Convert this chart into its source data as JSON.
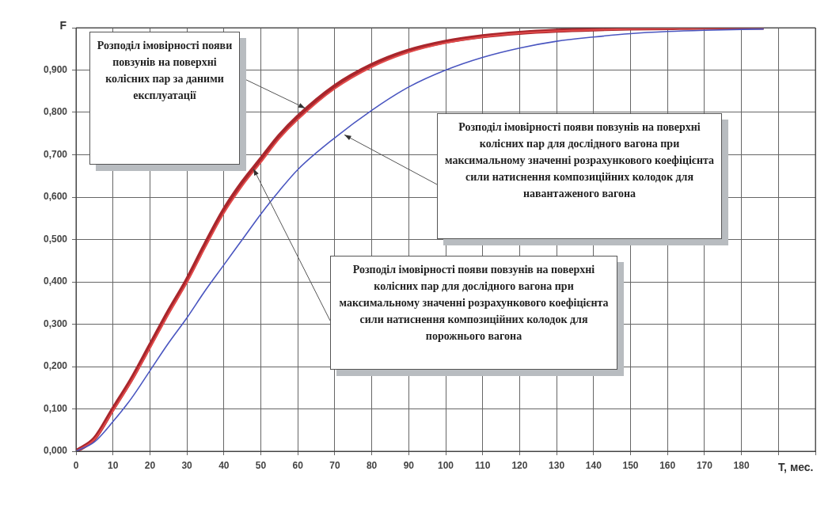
{
  "chart_data": {
    "type": "line",
    "xlabel": "T, мес.",
    "ylabel": "F",
    "xlim": [
      0,
      200
    ],
    "xticks": [
      0,
      10,
      20,
      30,
      40,
      50,
      60,
      70,
      80,
      90,
      100,
      110,
      120,
      130,
      140,
      150,
      160,
      170,
      180,
      {
        "value": 190,
        "label": null
      },
      {
        "value": 200,
        "label": null
      }
    ],
    "ylim": [
      0,
      1.0
    ],
    "yticks": [
      {
        "value": 0,
        "label": "0,000"
      },
      {
        "value": 0.1,
        "label": "0,100"
      },
      {
        "value": 0.2,
        "label": "0,200"
      },
      {
        "value": 0.3,
        "label": "0,300"
      },
      {
        "value": 0.4,
        "label": "0,400"
      },
      {
        "value": 0.5,
        "label": "0,500"
      },
      {
        "value": 0.6,
        "label": "0,600"
      },
      {
        "value": 0.7,
        "label": "0,700"
      },
      {
        "value": 0.8,
        "label": "0,800"
      },
      {
        "value": 0.9,
        "label": "0,900"
      },
      {
        "value": 1.0,
        "label": null
      }
    ],
    "grid": true,
    "marker": "none",
    "line_style": "solid",
    "x": [
      0,
      5,
      10,
      15,
      20,
      25,
      30,
      35,
      40,
      45,
      50,
      55,
      60,
      70,
      80,
      90,
      100,
      110,
      120,
      130,
      140,
      150,
      160,
      170,
      186
    ],
    "series": [
      {
        "color": "#a8262c",
        "values": [
          0,
          0.03,
          0.1,
          0.17,
          0.25,
          0.33,
          0.405,
          0.49,
          0.57,
          0.635,
          0.69,
          0.745,
          0.79,
          0.862,
          0.912,
          0.946,
          0.967,
          0.98,
          0.988,
          0.993,
          0.996,
          0.998,
          0.999,
          1.0,
          1.0
        ]
      },
      {
        "color": "#e04a4a",
        "values": [
          0,
          0.028,
          0.095,
          0.165,
          0.243,
          0.323,
          0.398,
          0.482,
          0.562,
          0.627,
          0.682,
          0.738,
          0.783,
          0.856,
          0.907,
          0.942,
          0.964,
          0.978,
          0.987,
          0.992,
          0.995,
          0.997,
          0.998,
          0.999,
          1.0
        ]
      },
      {
        "color": "#4a56c0",
        "values": [
          0,
          0.022,
          0.07,
          0.125,
          0.19,
          0.255,
          0.315,
          0.38,
          0.44,
          0.5,
          0.56,
          0.615,
          0.665,
          0.74,
          0.805,
          0.86,
          0.9,
          0.93,
          0.952,
          0.968,
          0.978,
          0.986,
          0.991,
          0.994,
          0.997
        ]
      }
    ],
    "annotations": [
      {
        "text": "Розподіл імовірності появи повзунів на поверхні колісних пар за даними експлуатації",
        "x": 62,
        "y": 0.81
      },
      {
        "text": "Розподіл імовірності появи повзунів на поверхні колісних пар для дослідного вагона при максимальному значенні розрахункового коефіцієнта сили натиснення композиційних колодок для навантаженого вагона",
        "x": 72.6,
        "y": 0.747
      },
      {
        "text": "Розподіл імовірності появи повзунів на поверхні колісних пар для дослідного вагона при максимальному значенні розрахункового коефіцієнта сили натиснення композиційних колодок для порожнього вагона",
        "x": 48,
        "y": 0.667
      }
    ]
  }
}
